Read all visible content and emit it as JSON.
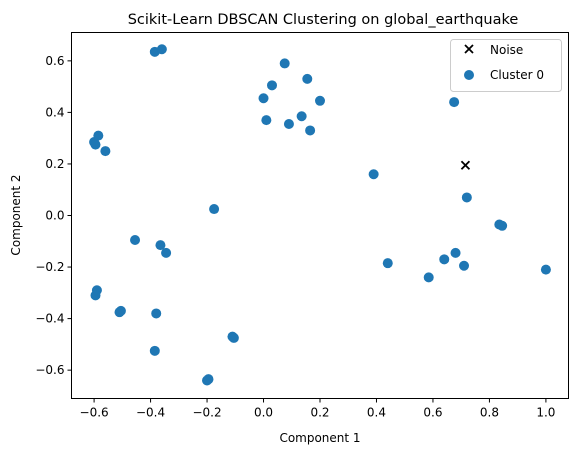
{
  "chart_data": {
    "type": "scatter",
    "title": "Scikit-Learn DBSCAN Clustering on global_earthquake",
    "xlabel": "Component 1",
    "ylabel": "Component 2",
    "xlim": [
      -0.68,
      1.08
    ],
    "ylim": [
      -0.71,
      0.71
    ],
    "xticks": [
      -0.6,
      -0.4,
      -0.2,
      0.0,
      0.2,
      0.4,
      0.6,
      0.8,
      1.0
    ],
    "xtick_labels": [
      "−0.6",
      "−0.4",
      "−0.2",
      "0.0",
      "0.2",
      "0.4",
      "0.6",
      "0.8",
      "1.0"
    ],
    "yticks": [
      -0.6,
      -0.4,
      -0.2,
      0.0,
      0.2,
      0.4,
      0.6
    ],
    "ytick_labels": [
      "−0.6",
      "−0.4",
      "−0.2",
      "0.0",
      "0.2",
      "0.4",
      "0.6"
    ],
    "grid": false,
    "legend_position": "top-right",
    "series": [
      {
        "name": "Noise",
        "marker": "x",
        "color": "#000000",
        "points": [
          [
            0.715,
            0.195
          ]
        ]
      },
      {
        "name": "Cluster 0",
        "marker": "circle",
        "color": "#1f77b4",
        "points": [
          [
            -0.385,
            0.635
          ],
          [
            -0.36,
            0.645
          ],
          [
            -0.6,
            0.285
          ],
          [
            -0.595,
            0.275
          ],
          [
            -0.585,
            0.31
          ],
          [
            -0.56,
            0.25
          ],
          [
            -0.175,
            0.025
          ],
          [
            -0.455,
            -0.095
          ],
          [
            -0.365,
            -0.115
          ],
          [
            -0.345,
            -0.145
          ],
          [
            -0.595,
            -0.31
          ],
          [
            -0.59,
            -0.29
          ],
          [
            -0.51,
            -0.375
          ],
          [
            -0.505,
            -0.37
          ],
          [
            -0.38,
            -0.38
          ],
          [
            -0.385,
            -0.525
          ],
          [
            -0.11,
            -0.47
          ],
          [
            -0.105,
            -0.475
          ],
          [
            -0.2,
            -0.64
          ],
          [
            -0.195,
            -0.635
          ],
          [
            0.075,
            0.59
          ],
          [
            0.03,
            0.505
          ],
          [
            0.0,
            0.455
          ],
          [
            0.155,
            0.53
          ],
          [
            0.2,
            0.445
          ],
          [
            0.01,
            0.37
          ],
          [
            0.09,
            0.355
          ],
          [
            0.135,
            0.385
          ],
          [
            0.165,
            0.33
          ],
          [
            0.675,
            0.44
          ],
          [
            0.39,
            0.16
          ],
          [
            0.72,
            0.07
          ],
          [
            0.44,
            -0.185
          ],
          [
            0.585,
            -0.24
          ],
          [
            0.64,
            -0.17
          ],
          [
            0.68,
            -0.145
          ],
          [
            0.71,
            -0.195
          ],
          [
            0.835,
            -0.035
          ],
          [
            0.845,
            -0.04
          ],
          [
            1.0,
            -0.21
          ]
        ]
      }
    ]
  }
}
